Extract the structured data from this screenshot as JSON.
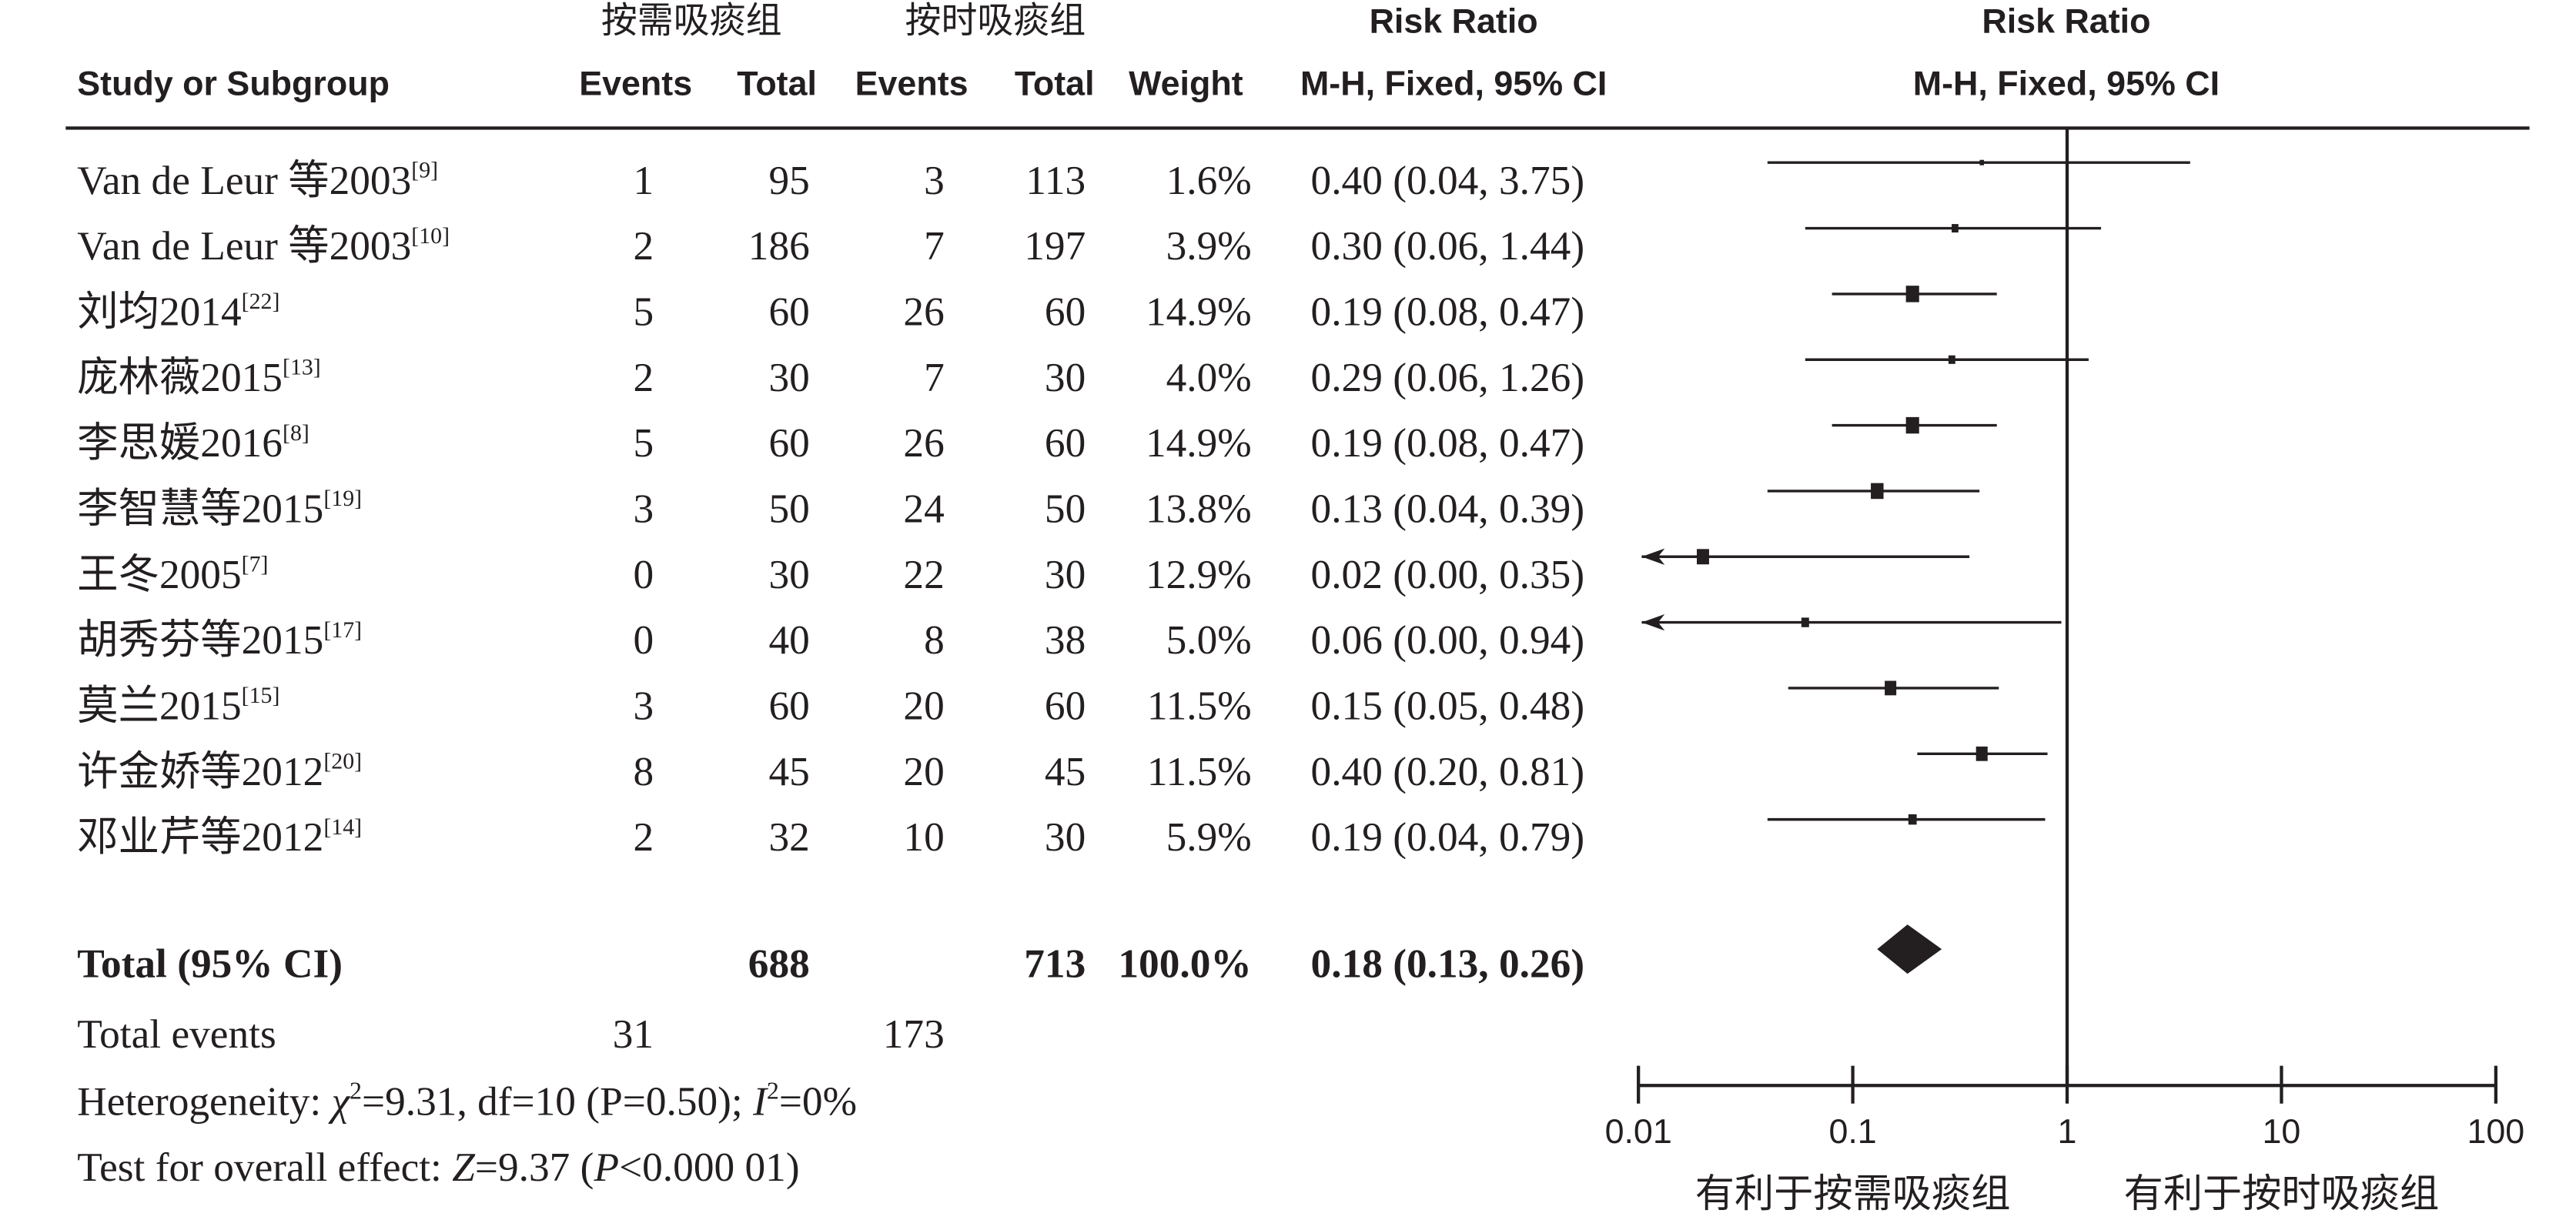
{
  "headers": {
    "group_experimental": "按需吸痰组",
    "group_control": "按时吸痰组",
    "table_measure": "Risk Ratio",
    "plot_measure": "Risk Ratio",
    "study": "Study or Subgroup",
    "events_experimental": "Events",
    "total_experimental": "Total",
    "events_control": "Events",
    "total_control": "Total",
    "weight": "Weight",
    "table_method": "M-H, Fixed, 95% CI",
    "plot_method": "M-H, Fixed, 95% CI"
  },
  "colors": {
    "ink": "#231f20"
  },
  "chart_data": {
    "type": "scatter",
    "x_scale": "log",
    "xlim": [
      0.01,
      100
    ],
    "xticks": [
      "0.01",
      "0.1",
      "1",
      "10",
      "100"
    ],
    "null_line": 1,
    "xlabel_left": "有利于按需吸痰组",
    "xlabel_right": "有利于按时吸痰组",
    "studies": [
      {
        "study": "Van de Leur 等2003",
        "ref": "[9]",
        "events_experimental": 1,
        "total_experimental": 95,
        "events_control": 3,
        "total_control": 113,
        "weight": 1.6,
        "rr": 0.4,
        "ci_lower": 0.04,
        "ci_upper": 3.75
      },
      {
        "study": "Van de Leur 等2003",
        "ref": "[10]",
        "events_experimental": 2,
        "total_experimental": 186,
        "events_control": 7,
        "total_control": 197,
        "weight": 3.9,
        "rr": 0.3,
        "ci_lower": 0.06,
        "ci_upper": 1.44
      },
      {
        "study": "刘均2014",
        "ref": "[22]",
        "events_experimental": 5,
        "total_experimental": 60,
        "events_control": 26,
        "total_control": 60,
        "weight": 14.9,
        "rr": 0.19,
        "ci_lower": 0.08,
        "ci_upper": 0.47
      },
      {
        "study": "庞林薇2015",
        "ref": "[13]",
        "events_experimental": 2,
        "total_experimental": 30,
        "events_control": 7,
        "total_control": 30,
        "weight": 4.0,
        "rr": 0.29,
        "ci_lower": 0.06,
        "ci_upper": 1.26
      },
      {
        "study": "李思媛2016",
        "ref": "[8]",
        "events_experimental": 5,
        "total_experimental": 60,
        "events_control": 26,
        "total_control": 60,
        "weight": 14.9,
        "rr": 0.19,
        "ci_lower": 0.08,
        "ci_upper": 0.47
      },
      {
        "study": "李智慧等2015",
        "ref": "[19]",
        "events_experimental": 3,
        "total_experimental": 50,
        "events_control": 24,
        "total_control": 50,
        "weight": 13.8,
        "rr": 0.13,
        "ci_lower": 0.04,
        "ci_upper": 0.39
      },
      {
        "study": "王冬2005",
        "ref": "[7]",
        "events_experimental": 0,
        "total_experimental": 30,
        "events_control": 22,
        "total_control": 30,
        "weight": 12.9,
        "rr": 0.02,
        "ci_lower": 0.0,
        "ci_upper": 0.35
      },
      {
        "study": "胡秀芬等2015",
        "ref": "[17]",
        "events_experimental": 0,
        "total_experimental": 40,
        "events_control": 8,
        "total_control": 38,
        "weight": 5.0,
        "rr": 0.06,
        "ci_lower": 0.0,
        "ci_upper": 0.94
      },
      {
        "study": "莫兰2015",
        "ref": "[15]",
        "events_experimental": 3,
        "total_experimental": 60,
        "events_control": 20,
        "total_control": 60,
        "weight": 11.5,
        "rr": 0.15,
        "ci_lower": 0.05,
        "ci_upper": 0.48
      },
      {
        "study": "许金娇等2012",
        "ref": "[20]",
        "events_experimental": 8,
        "total_experimental": 45,
        "events_control": 20,
        "total_control": 45,
        "weight": 11.5,
        "rr": 0.4,
        "ci_lower": 0.2,
        "ci_upper": 0.81
      },
      {
        "study": "邓业芹等2012",
        "ref": "[14]",
        "events_experimental": 2,
        "total_experimental": 32,
        "events_control": 10,
        "total_control": 30,
        "weight": 5.9,
        "rr": 0.19,
        "ci_lower": 0.04,
        "ci_upper": 0.79
      }
    ],
    "total": {
      "label": "Total (95% CI)",
      "total_experimental": 688,
      "total_control": 713,
      "weight": 100.0,
      "rr": 0.18,
      "ci_lower": 0.13,
      "ci_upper": 0.26
    },
    "total_events": {
      "label": "Total events",
      "events_experimental": 31,
      "events_control": 173
    },
    "heterogeneity": [
      {
        "text": "Heterogeneity: "
      },
      {
        "text": "χ",
        "italic": true
      },
      {
        "text": "2",
        "sup": true
      },
      {
        "text": "=9.31, df=10 (P=0.50); "
      },
      {
        "text": "I",
        "italic": true
      },
      {
        "text": "2",
        "sup": true
      },
      {
        "text": "=0%"
      }
    ],
    "overall_effect": [
      {
        "text": "Test for overall effect: "
      },
      {
        "text": "Z",
        "italic": true
      },
      {
        "text": "=9.37 ("
      },
      {
        "text": "P",
        "italic": true
      },
      {
        "text": "<0.000 01)"
      }
    ]
  }
}
